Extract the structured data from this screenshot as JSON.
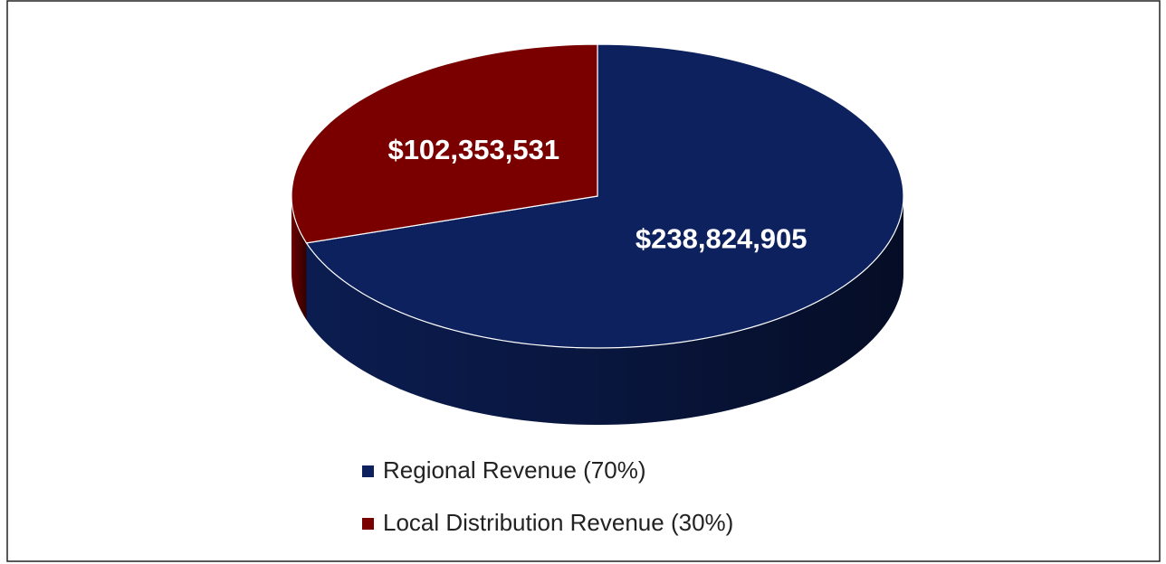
{
  "chart_data": {
    "type": "pie",
    "categories": [
      "Regional Revenue (70%)",
      "Local Distribution Revenue (30%)"
    ],
    "values": [
      238824905,
      102353531
    ],
    "value_labels": [
      "$238,824,905",
      "$102,353,531"
    ],
    "colors": [
      "#0d215e",
      "#7a0000"
    ],
    "legend": "bottom"
  }
}
